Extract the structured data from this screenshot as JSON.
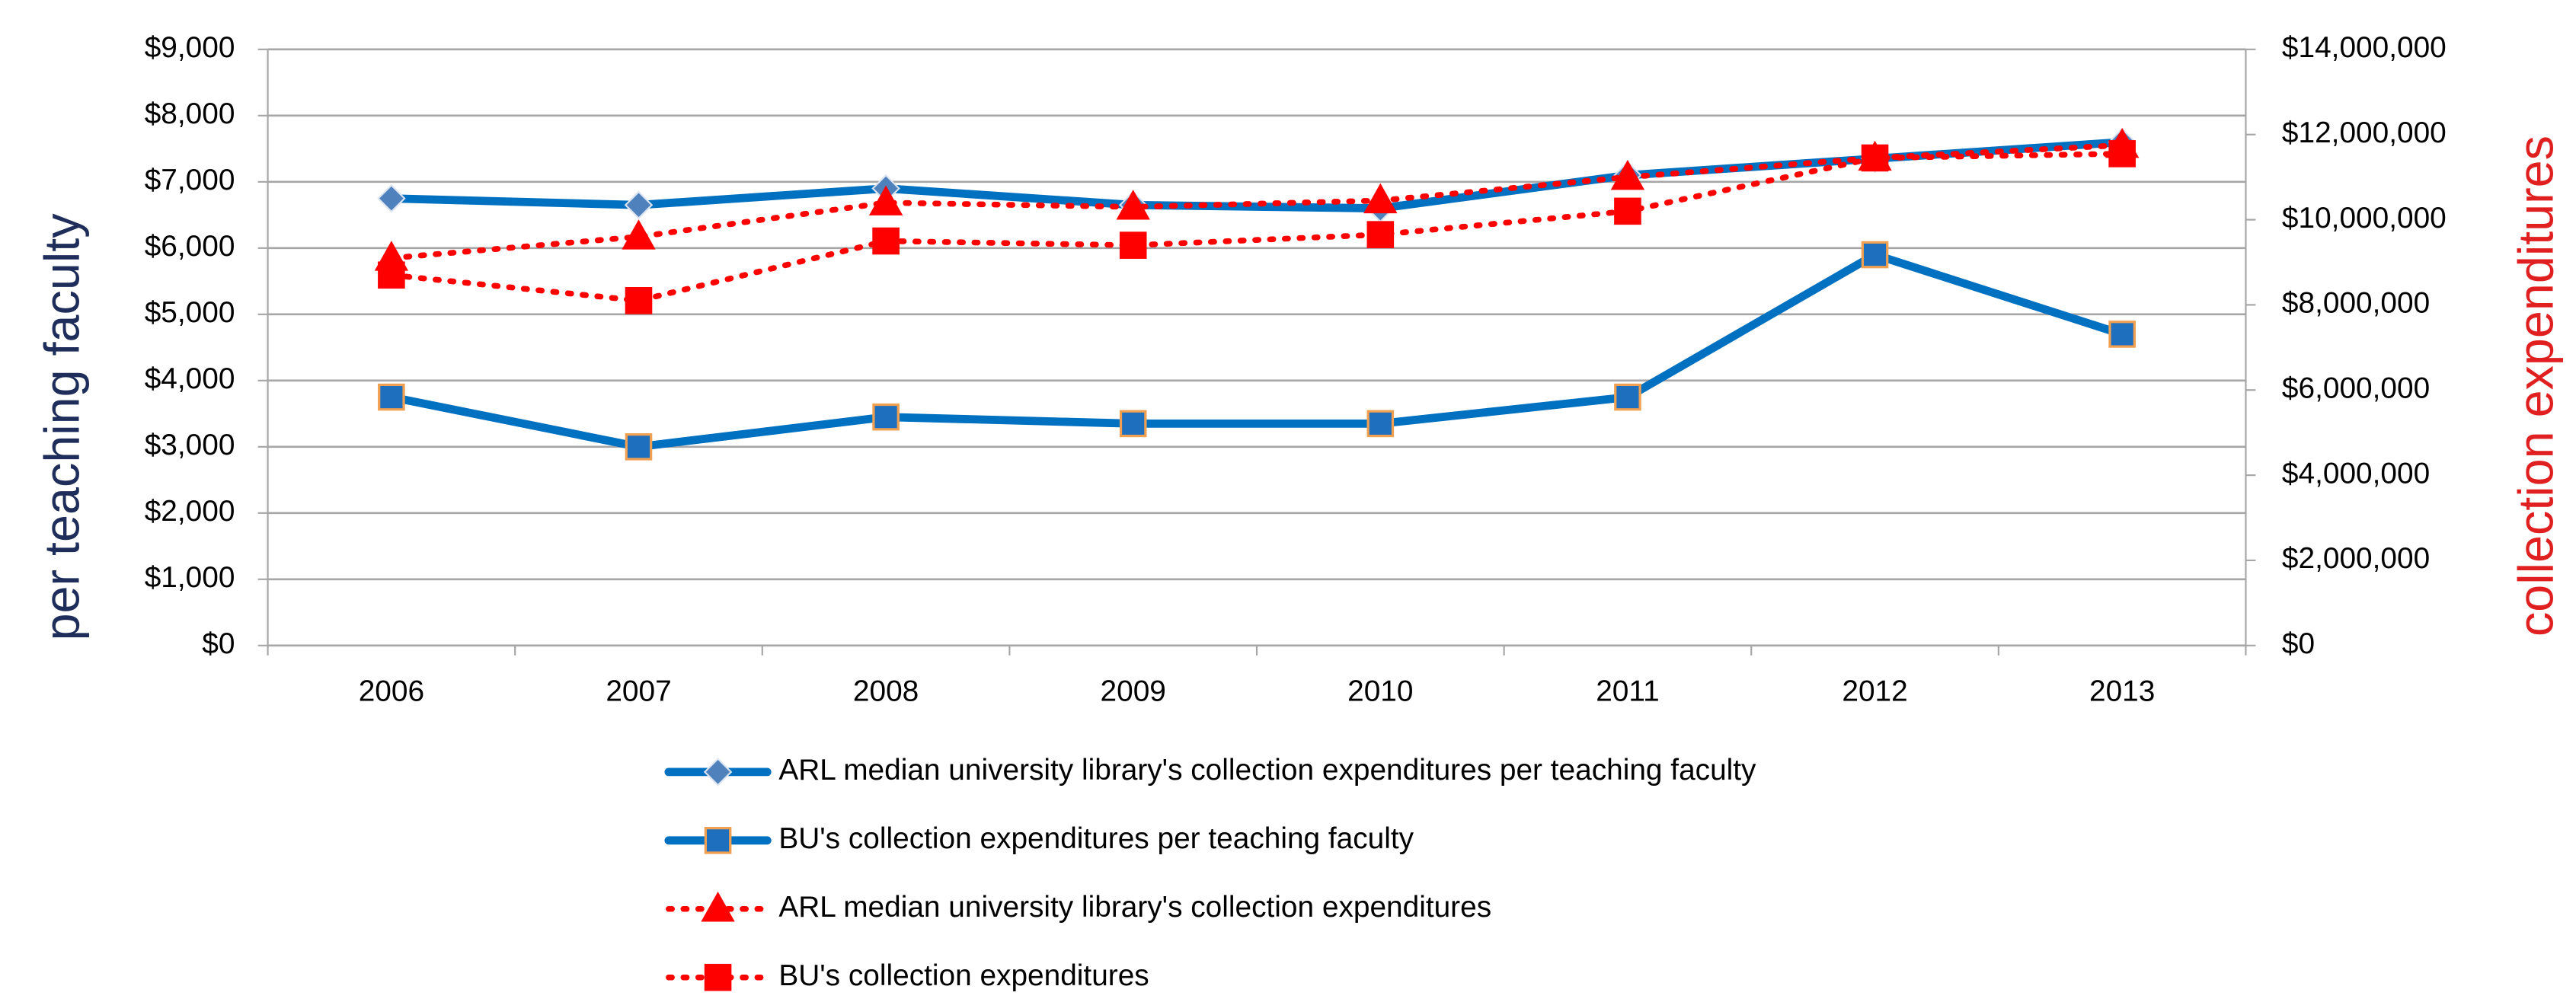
{
  "chart_data": {
    "type": "line",
    "categories": [
      "2006",
      "2007",
      "2008",
      "2009",
      "2010",
      "2011",
      "2012",
      "2013"
    ],
    "ylabel": "per teaching faculty",
    "y2label": "collection expenditures",
    "ylim": [
      0,
      9000
    ],
    "yticks": [
      {
        "value": 0,
        "label": "$0"
      },
      {
        "value": 1000,
        "label": "$1,000"
      },
      {
        "value": 2000,
        "label": "$2,000"
      },
      {
        "value": 3000,
        "label": "$3,000"
      },
      {
        "value": 4000,
        "label": "$4,000"
      },
      {
        "value": 5000,
        "label": "$5,000"
      },
      {
        "value": 6000,
        "label": "$6,000"
      },
      {
        "value": 7000,
        "label": "$7,000"
      },
      {
        "value": 8000,
        "label": "$8,000"
      },
      {
        "value": 9000,
        "label": "$9,000"
      }
    ],
    "y2lim": [
      0,
      14000000
    ],
    "y2ticks": [
      {
        "value": 0,
        "label": "$0"
      },
      {
        "value": 2000000,
        "label": "$2,000,000"
      },
      {
        "value": 4000000,
        "label": "$4,000,000"
      },
      {
        "value": 6000000,
        "label": "$6,000,000"
      },
      {
        "value": 8000000,
        "label": "$8,000,000"
      },
      {
        "value": 10000000,
        "label": "$10,000,000"
      },
      {
        "value": 12000000,
        "label": "$12,000,000"
      },
      {
        "value": 14000000,
        "label": "$14,000,000"
      }
    ],
    "grid": true,
    "legend": "bottom",
    "series": [
      {
        "name": "ARL median university library's collection expenditures per teaching faculty",
        "color": "#0070c0",
        "marker": "diamond",
        "marker_color": "#4f81bd",
        "dash": "solid",
        "values": [
          6750,
          6650,
          6900,
          6650,
          6600,
          7100,
          7350,
          7600
        ]
      },
      {
        "name": "BU's collection expenditures per teaching faculty",
        "color": "#0070c0",
        "marker": "square",
        "marker_color": "#1f6fbf",
        "marker_edge": "#f0a050",
        "dash": "solid",
        "values": [
          3750,
          3000,
          3450,
          3350,
          3350,
          3750,
          5900,
          4700
        ]
      },
      {
        "name": "ARL median university library's collection expenditures",
        "color": "#ff0000",
        "marker": "triangle",
        "marker_color": "#ff0000",
        "dash": "dotted",
        "axis": "y2",
        "values": [
          9100000,
          9600000,
          10400000,
          10300000,
          10450000,
          11000000,
          11450000,
          11750000
        ]
      },
      {
        "name": "BU's collection expenditures",
        "color": "#ff0000",
        "marker": "square",
        "marker_color": "#ff0000",
        "dash": "dotted",
        "axis": "y2",
        "values": [
          8700000,
          8100000,
          9500000,
          9400000,
          9650000,
          10200000,
          11450000,
          11550000
        ]
      }
    ]
  }
}
